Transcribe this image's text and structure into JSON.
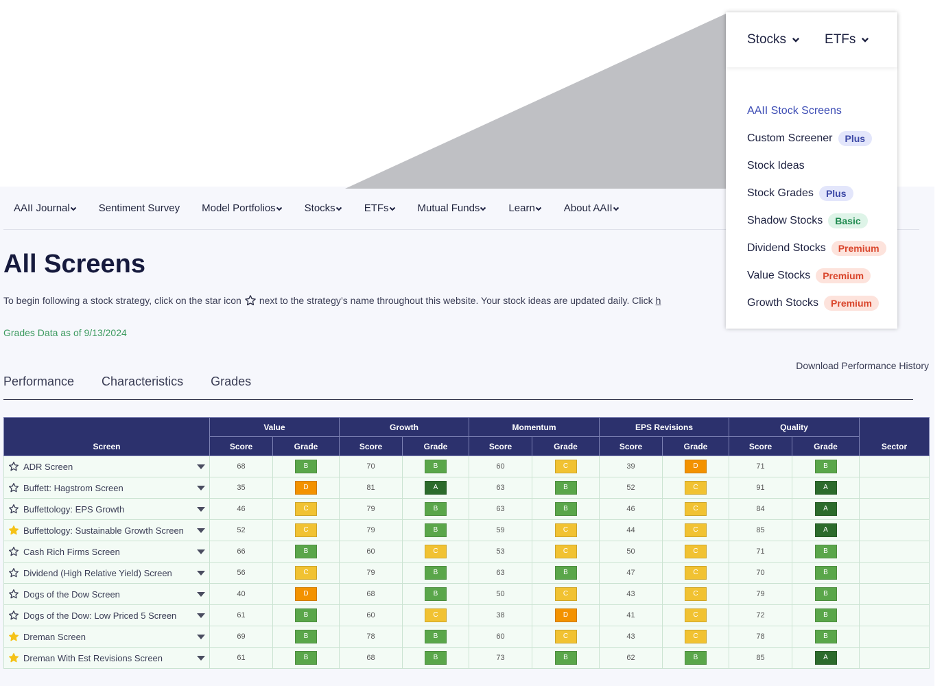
{
  "zoom_menu": {
    "tabs": [
      "Stocks",
      "ETFs"
    ],
    "items": [
      {
        "label": "AAII Stock Screens",
        "badge": null
      },
      {
        "label": "Custom Screener",
        "badge": "Plus"
      },
      {
        "label": "Stock Ideas",
        "badge": null
      },
      {
        "label": "Stock Grades",
        "badge": "Plus"
      },
      {
        "label": "Shadow Stocks",
        "badge": "Basic"
      },
      {
        "label": "Dividend Stocks",
        "badge": "Premium"
      },
      {
        "label": "Value Stocks",
        "badge": "Premium"
      },
      {
        "label": "Growth Stocks",
        "badge": "Premium"
      }
    ]
  },
  "nav": {
    "items": [
      {
        "label": "AAII Journal",
        "has_dropdown": true,
        "highlighted": false
      },
      {
        "label": "Sentiment Survey",
        "has_dropdown": false,
        "highlighted": false
      },
      {
        "label": "Model Portfolios",
        "has_dropdown": true,
        "highlighted": false
      },
      {
        "label": "Stocks",
        "has_dropdown": true,
        "highlighted": true
      },
      {
        "label": "ETFs",
        "has_dropdown": true,
        "highlighted": false
      },
      {
        "label": "Mutual Funds",
        "has_dropdown": true,
        "highlighted": false
      },
      {
        "label": "Learn",
        "has_dropdown": true,
        "highlighted": false
      },
      {
        "label": "About AAII",
        "has_dropdown": true,
        "highlighted": false
      }
    ]
  },
  "header": {
    "title": "All Screens",
    "intro_before": "To begin following a stock strategy, click on the star icon",
    "intro_after": "next to the strategy’s name throughout this website. Your stock ideas are updated daily. Click",
    "intro_link": "h",
    "grades_date": "Grades Data as of 9/13/2024",
    "download": "Download Performance History"
  },
  "tabs": {
    "items": [
      "Performance",
      "Characteristics",
      "Grades"
    ],
    "active": 2
  },
  "table": {
    "screen_header": "Screen",
    "sector_header": "Sector",
    "groups": [
      "Value",
      "Growth",
      "Momentum",
      "EPS Revisions",
      "Quality"
    ],
    "sub_headers": [
      "Score",
      "Grade"
    ],
    "rows": [
      {
        "name": "ADR Screen",
        "starred": false,
        "cells": [
          [
            68,
            "B"
          ],
          [
            70,
            "B"
          ],
          [
            60,
            "C"
          ],
          [
            39,
            "D"
          ],
          [
            71,
            "B"
          ]
        ]
      },
      {
        "name": "Buffett: Hagstrom Screen",
        "starred": false,
        "cells": [
          [
            35,
            "D"
          ],
          [
            81,
            "A"
          ],
          [
            63,
            "B"
          ],
          [
            52,
            "C"
          ],
          [
            91,
            "A"
          ]
        ]
      },
      {
        "name": "Buffettology: EPS Growth",
        "starred": false,
        "cells": [
          [
            46,
            "C"
          ],
          [
            79,
            "B"
          ],
          [
            63,
            "B"
          ],
          [
            46,
            "C"
          ],
          [
            84,
            "A"
          ]
        ]
      },
      {
        "name": "Buffettology: Sustainable Growth Screen",
        "starred": true,
        "cells": [
          [
            52,
            "C"
          ],
          [
            79,
            "B"
          ],
          [
            59,
            "C"
          ],
          [
            44,
            "C"
          ],
          [
            85,
            "A"
          ]
        ]
      },
      {
        "name": "Cash Rich Firms Screen",
        "starred": false,
        "cells": [
          [
            66,
            "B"
          ],
          [
            60,
            "C"
          ],
          [
            53,
            "C"
          ],
          [
            50,
            "C"
          ],
          [
            71,
            "B"
          ]
        ]
      },
      {
        "name": "Dividend (High Relative Yield) Screen",
        "starred": false,
        "cells": [
          [
            56,
            "C"
          ],
          [
            79,
            "B"
          ],
          [
            63,
            "B"
          ],
          [
            47,
            "C"
          ],
          [
            70,
            "B"
          ]
        ]
      },
      {
        "name": "Dogs of the Dow Screen",
        "starred": false,
        "cells": [
          [
            40,
            "D"
          ],
          [
            68,
            "B"
          ],
          [
            50,
            "C"
          ],
          [
            43,
            "C"
          ],
          [
            79,
            "B"
          ]
        ]
      },
      {
        "name": "Dogs of the Dow: Low Priced 5 Screen",
        "starred": false,
        "cells": [
          [
            61,
            "B"
          ],
          [
            60,
            "C"
          ],
          [
            38,
            "D"
          ],
          [
            41,
            "C"
          ],
          [
            72,
            "B"
          ]
        ]
      },
      {
        "name": "Dreman Screen",
        "starred": true,
        "cells": [
          [
            69,
            "B"
          ],
          [
            78,
            "B"
          ],
          [
            60,
            "C"
          ],
          [
            43,
            "C"
          ],
          [
            78,
            "B"
          ]
        ]
      },
      {
        "name": "Dreman With Est Revisions Screen",
        "starred": true,
        "cells": [
          [
            61,
            "B"
          ],
          [
            68,
            "B"
          ],
          [
            73,
            "B"
          ],
          [
            62,
            "B"
          ],
          [
            85,
            "A"
          ]
        ]
      }
    ]
  }
}
